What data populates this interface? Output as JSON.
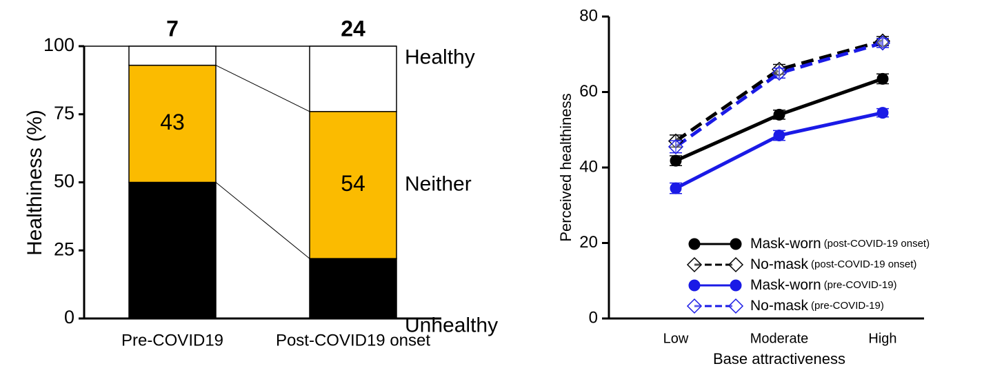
{
  "chart_data": [
    {
      "type": "stacked_bar",
      "y_label": "Healthiness (%)",
      "categories": [
        "Pre-COVID19",
        "Post-COVID19 onset"
      ],
      "series": [
        {
          "name": "Unhealthy",
          "color": "#000000",
          "label_color": "#ffffff",
          "label_position": "inside",
          "values": [
            50,
            22
          ]
        },
        {
          "name": "Neither",
          "color": "#fbbb00",
          "label_color": "#000000",
          "label_position": "inside",
          "values": [
            43,
            54
          ]
        },
        {
          "name": "Healthy",
          "color": "#ffffff",
          "label_color": "#000000",
          "label_position": "top",
          "values": [
            7,
            24
          ]
        }
      ],
      "ylim": [
        0,
        100
      ],
      "yticks": [
        0,
        25,
        50,
        75,
        100
      ]
    },
    {
      "type": "line",
      "x_label": "Base attractiveness",
      "y_label": "Perceived healthiness",
      "categories": [
        "Low",
        "Moderate",
        "High"
      ],
      "series": [
        {
          "name": "Mask-worn",
          "subname": "(post-COVID-19 onset)",
          "color": "#000000",
          "marker": "circle",
          "dashed": false,
          "values": [
            41.8,
            54,
            63.5
          ],
          "errors": [
            1.3,
            1.2,
            1.3
          ]
        },
        {
          "name": "No-mask",
          "subname": "(post-COVID-19 onset)",
          "color": "#000000",
          "marker": "diamond",
          "dashed": true,
          "values": [
            47,
            66,
            73.5
          ],
          "errors": [
            1.6,
            1.3,
            1.2
          ]
        },
        {
          "name": "Mask-worn",
          "subname": "(pre-COVID-19)",
          "color": "#1a1ae6",
          "marker": "circle",
          "dashed": false,
          "values": [
            34.5,
            48.5,
            54.5
          ],
          "errors": [
            1.4,
            1.3,
            1.1
          ]
        },
        {
          "name": "No-mask",
          "subname": "(pre-COVID-19)",
          "color": "#1a1ae6",
          "marker": "diamond",
          "dashed": true,
          "values": [
            45.5,
            65,
            73
          ],
          "errors": [
            1.6,
            1.3,
            1.2
          ]
        }
      ],
      "ylim": [
        0,
        80
      ],
      "yticks": [
        0,
        20,
        40,
        60,
        80
      ]
    }
  ]
}
